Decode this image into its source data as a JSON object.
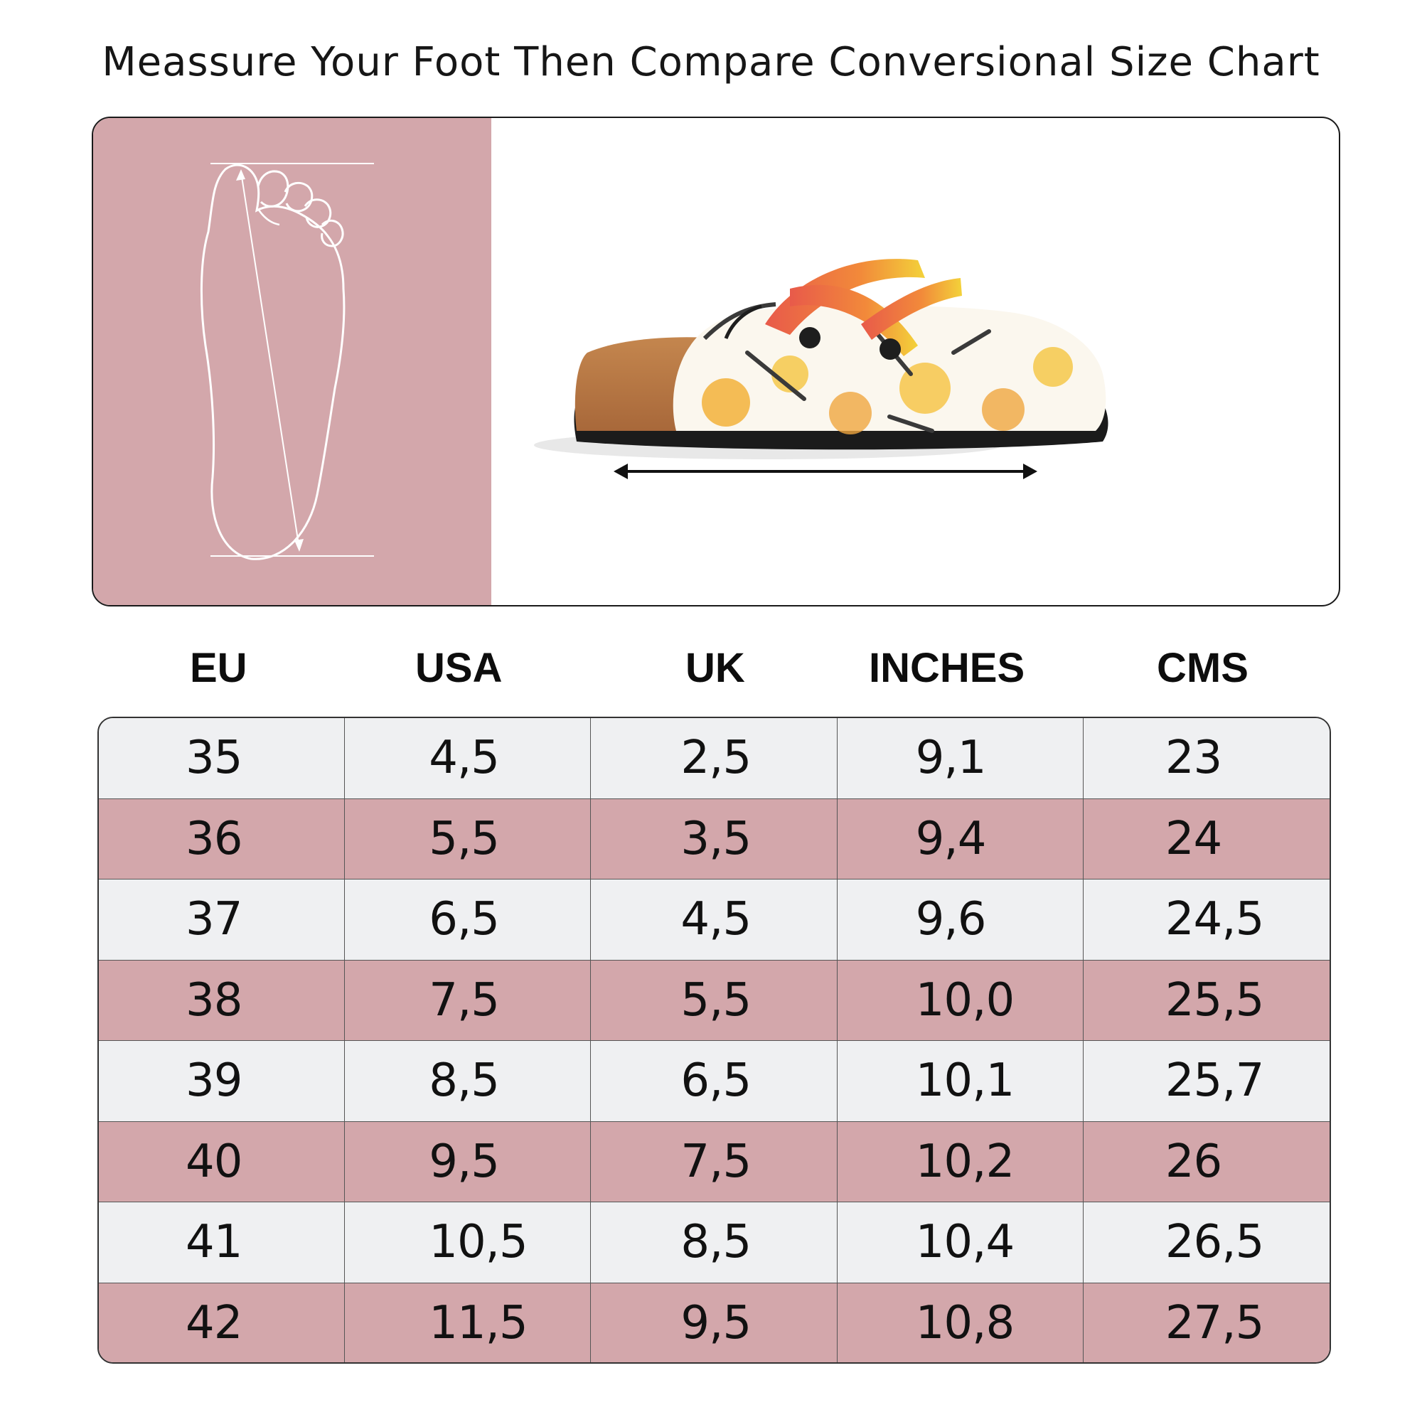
{
  "title": "Meassure Your Foot Then Compare Conversional Size Chart",
  "colors": {
    "accent_pink": "#d3a7ab",
    "row_light": "#eff0f2",
    "border": "#1a1a1a"
  },
  "illustrations": {
    "foot": "foot-outline-measure-icon",
    "shoe": "floral-clog-shoe-image",
    "arrow": "double-arrow-length-icon"
  },
  "table": {
    "headers": [
      "EU",
      "USA",
      "UK",
      "INCHES",
      "CMS"
    ],
    "rows": [
      [
        "35",
        "4,5",
        "2,5",
        "9,1",
        "23"
      ],
      [
        "36",
        "5,5",
        "3,5",
        "9,4",
        "24"
      ],
      [
        "37",
        "6,5",
        "4,5",
        "9,6",
        "24,5"
      ],
      [
        "38",
        "7,5",
        "5,5",
        "10,0",
        "25,5"
      ],
      [
        "39",
        "8,5",
        "6,5",
        "10,1",
        "25,7"
      ],
      [
        "40",
        "9,5",
        "7,5",
        "10,2",
        "26"
      ],
      [
        "41",
        "10,5",
        "8,5",
        "10,4",
        "26,5"
      ],
      [
        "42",
        "11,5",
        "9,5",
        "10,8",
        "27,5"
      ]
    ]
  }
}
